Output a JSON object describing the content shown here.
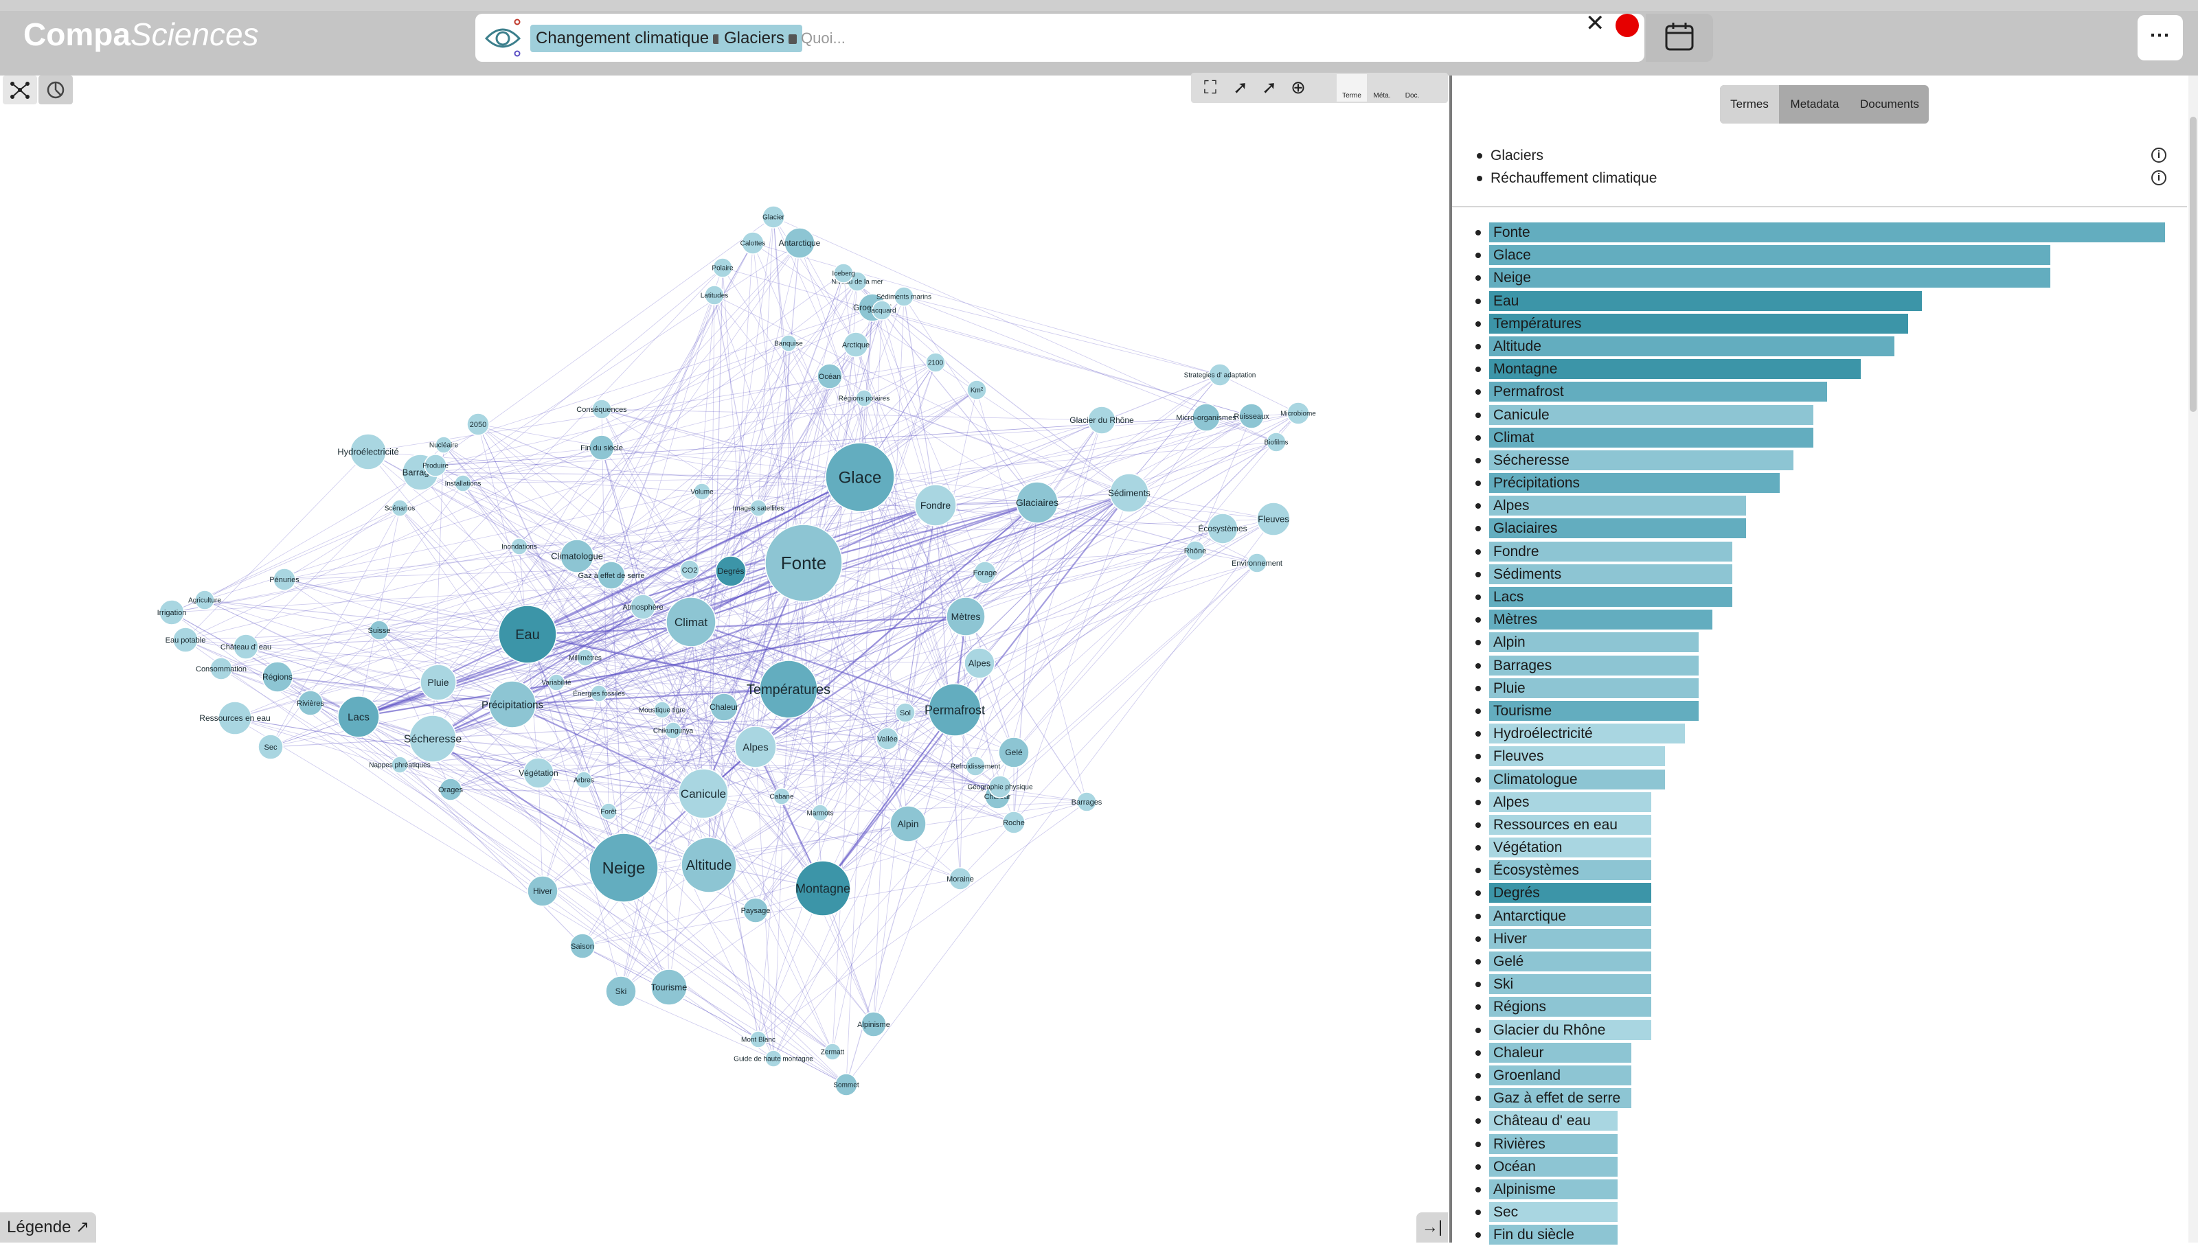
{
  "app": {
    "brand_strong": "Compa",
    "brand_light": "Sciences"
  },
  "search": {
    "chips": [
      "Changement climatique",
      "Glaciers"
    ],
    "placeholder": "Quoi...",
    "clear_icon": "close-icon",
    "status_color": "#e60000"
  },
  "left_toolbar": {
    "icons": [
      "graph-icon",
      "pie-chart-icon"
    ]
  },
  "graph_toolbar": {
    "items": [
      "fit-screen-icon",
      "select-nodes-icon",
      "pointer-icon",
      "zoom-in-icon",
      "zoom-out-icon"
    ],
    "modes": [
      "Terme",
      "Méta.",
      "Doc."
    ],
    "active_mode": "Terme"
  },
  "footer": {
    "legend": "Légende",
    "collapse_icon": "collapse-right-icon"
  },
  "right": {
    "tabs": [
      "Termes",
      "Metadata",
      "Documents"
    ],
    "active_tab": "Termes",
    "queries": [
      "Glaciers",
      "Réchauffement climatique"
    ]
  },
  "colors": {
    "node": "#9fcfdb",
    "node_dark": "#3c95a8",
    "edge": "#5b4fc4"
  },
  "chart_data": {
    "type": "bar",
    "orientation": "horizontal",
    "categories": [
      "Fonte",
      "Glace",
      "Neige",
      "Eau",
      "Températures",
      "Altitude",
      "Montagne",
      "Permafrost",
      "Canicule",
      "Climat",
      "Sécheresse",
      "Précipitations",
      "Alpes",
      "Glaciaires",
      "Fondre",
      "Sédiments",
      "Lacs",
      "Mètres",
      "Alpin",
      "Barrages",
      "Pluie",
      "Tourisme",
      "Hydroélectricité",
      "Fleuves",
      "Climatologue",
      "Alpes",
      "Ressources en eau",
      "Végétation",
      "Écosystèmes",
      "Degrés",
      "Antarctique",
      "Hiver",
      "Gelé",
      "Ski",
      "Régions",
      "Glacier du Rhône",
      "Chaleur",
      "Groenland",
      "Gaz à effet de serre",
      "Château d' eau",
      "Rivières",
      "Océan",
      "Alpinisme",
      "Sec",
      "Fin du siècle"
    ],
    "values": [
      100,
      83,
      83,
      64,
      62,
      60,
      55,
      50,
      48,
      48,
      45,
      43,
      38,
      38,
      36,
      36,
      36,
      33,
      31,
      31,
      31,
      31,
      29,
      26,
      26,
      24,
      24,
      24,
      24,
      24,
      24,
      24,
      24,
      24,
      24,
      24,
      21,
      21,
      21,
      19,
      19,
      19,
      19,
      19,
      19
    ],
    "shades": [
      2,
      2,
      2,
      3,
      3,
      2,
      3,
      2,
      1,
      2,
      1,
      2,
      1,
      2,
      1,
      1,
      2,
      2,
      1,
      1,
      1,
      2,
      0,
      0,
      1,
      0,
      0,
      0,
      1,
      3,
      1,
      1,
      1,
      1,
      1,
      0,
      1,
      1,
      1,
      0,
      1,
      1,
      1,
      0,
      1
    ],
    "xlim": [
      0,
      100
    ]
  },
  "graph": {
    "nodes": [
      {
        "label": "Fonte",
        "r": 56,
        "shade": 1,
        "fs": 26
      },
      {
        "label": "Glace",
        "r": 50,
        "shade": 2,
        "fs": 24
      },
      {
        "label": "Neige",
        "r": 50,
        "shade": 2,
        "fs": 24
      },
      {
        "label": "Eau",
        "r": 42,
        "shade": 3,
        "fs": 20
      },
      {
        "label": "Températures",
        "r": 42,
        "shade": 2,
        "fs": 20
      },
      {
        "label": "Altitude",
        "r": 40,
        "shade": 1,
        "fs": 20
      },
      {
        "label": "Montagne",
        "r": 40,
        "shade": 3,
        "fs": 18
      },
      {
        "label": "Permafrost",
        "r": 38,
        "shade": 2,
        "fs": 18
      },
      {
        "label": "Canicule",
        "r": 36,
        "shade": 0,
        "fs": 17
      },
      {
        "label": "Climat",
        "r": 36,
        "shade": 1,
        "fs": 17
      },
      {
        "label": "Sécheresse",
        "r": 34,
        "shade": 0,
        "fs": 16
      },
      {
        "label": "Précipitations",
        "r": 34,
        "shade": 1,
        "fs": 15
      },
      {
        "label": "Alpes",
        "r": 30,
        "shade": 0,
        "fs": 15
      },
      {
        "label": "Glaciaires",
        "r": 30,
        "shade": 1,
        "fs": 14
      },
      {
        "label": "Fondre",
        "r": 30,
        "shade": 0,
        "fs": 14
      },
      {
        "label": "Sédiments",
        "r": 28,
        "shade": 0,
        "fs": 13
      },
      {
        "label": "Lacs",
        "r": 30,
        "shade": 2,
        "fs": 15
      },
      {
        "label": "Mètres",
        "r": 28,
        "shade": 1,
        "fs": 14
      },
      {
        "label": "Alpin",
        "r": 26,
        "shade": 1,
        "fs": 14
      },
      {
        "label": "Barrages",
        "r": 26,
        "shade": 0,
        "fs": 13
      },
      {
        "label": "Pluie",
        "r": 26,
        "shade": 0,
        "fs": 14
      },
      {
        "label": "Tourisme",
        "r": 26,
        "shade": 1,
        "fs": 13
      },
      {
        "label": "Hydroélectricité",
        "r": 26,
        "shade": 0,
        "fs": 13
      },
      {
        "label": "Fleuves",
        "r": 24,
        "shade": 0,
        "fs": 13
      },
      {
        "label": "Climatologue",
        "r": 24,
        "shade": 1,
        "fs": 13
      },
      {
        "label": "Alpes",
        "r": 22,
        "shade": 0,
        "fs": 13
      },
      {
        "label": "Ressources en eau",
        "r": 24,
        "shade": 0,
        "fs": 12
      },
      {
        "label": "Végétation",
        "r": 22,
        "shade": 0,
        "fs": 12
      },
      {
        "label": "Écosystèmes",
        "r": 22,
        "shade": 0,
        "fs": 12
      },
      {
        "label": "Degrés",
        "r": 22,
        "shade": 3,
        "fs": 12
      },
      {
        "label": "Antarctique",
        "r": 22,
        "shade": 1,
        "fs": 12
      },
      {
        "label": "Hiver",
        "r": 22,
        "shade": 1,
        "fs": 12
      },
      {
        "label": "Gelé",
        "r": 22,
        "shade": 1,
        "fs": 12
      },
      {
        "label": "Ski",
        "r": 22,
        "shade": 1,
        "fs": 12
      },
      {
        "label": "Régions",
        "r": 22,
        "shade": 1,
        "fs": 12
      },
      {
        "label": "Glacier du Rhône",
        "r": 20,
        "shade": 0,
        "fs": 12
      },
      {
        "label": "Chaleur",
        "r": 20,
        "shade": 1,
        "fs": 12
      },
      {
        "label": "Groenland",
        "r": 20,
        "shade": 1,
        "fs": 12
      },
      {
        "label": "Gaz à effet de serre",
        "r": 20,
        "shade": 1,
        "fs": 11
      },
      {
        "label": "Château d' eau",
        "r": 18,
        "shade": 0,
        "fs": 11
      },
      {
        "label": "Rivières",
        "r": 18,
        "shade": 1,
        "fs": 11
      },
      {
        "label": "Océan",
        "r": 18,
        "shade": 1,
        "fs": 11
      },
      {
        "label": "Alpinisme",
        "r": 18,
        "shade": 1,
        "fs": 11
      },
      {
        "label": "Sec",
        "r": 18,
        "shade": 0,
        "fs": 11
      },
      {
        "label": "Fin du siècle",
        "r": 18,
        "shade": 1,
        "fs": 11
      },
      {
        "label": "Arctique",
        "r": 18,
        "shade": 0,
        "fs": 11
      },
      {
        "label": "Forage",
        "r": 16,
        "shade": 0,
        "fs": 11
      },
      {
        "label": "Atmosphère",
        "r": 18,
        "shade": 0,
        "fs": 11
      },
      {
        "label": "Vallée",
        "r": 16,
        "shade": 0,
        "fs": 11
      },
      {
        "label": "Roche",
        "r": 16,
        "shade": 0,
        "fs": 11
      },
      {
        "label": "Moraine",
        "r": 16,
        "shade": 0,
        "fs": 11
      },
      {
        "label": "Paysage",
        "r": 18,
        "shade": 1,
        "fs": 11
      },
      {
        "label": "Saison",
        "r": 18,
        "shade": 1,
        "fs": 11
      },
      {
        "label": "Barrages",
        "r": 14,
        "shade": 0,
        "fs": 11
      },
      {
        "label": "2050",
        "r": 16,
        "shade": 0,
        "fs": 11
      },
      {
        "label": "Conséquences",
        "r": 14,
        "shade": 0,
        "fs": 11
      },
      {
        "label": "Irrigation",
        "r": 18,
        "shade": 0,
        "fs": 11
      },
      {
        "label": "Agriculture",
        "r": 14,
        "shade": 0,
        "fs": 10
      },
      {
        "label": "Pénuries",
        "r": 16,
        "shade": 0,
        "fs": 11
      },
      {
        "label": "Eau potable",
        "r": 18,
        "shade": 0,
        "fs": 11
      },
      {
        "label": "Consommation",
        "r": 16,
        "shade": 0,
        "fs": 11
      },
      {
        "label": "Nappes phréatiques",
        "r": 12,
        "shade": 0,
        "fs": 10
      },
      {
        "label": "Orages",
        "r": 16,
        "shade": 1,
        "fs": 11
      },
      {
        "label": "Chaleur",
        "r": 18,
        "shade": 1,
        "fs": 11
      },
      {
        "label": "CO2",
        "r": 14,
        "shade": 0,
        "fs": 11
      },
      {
        "label": "Suisse",
        "r": 14,
        "shade": 1,
        "fs": 11
      },
      {
        "label": "Rhône",
        "r": 14,
        "shade": 0,
        "fs": 11
      },
      {
        "label": "Environnement",
        "r": 14,
        "shade": 0,
        "fs": 11
      },
      {
        "label": "Sol",
        "r": 14,
        "shade": 0,
        "fs": 11
      },
      {
        "label": "Ruisseaux",
        "r": 18,
        "shade": 1,
        "fs": 11
      },
      {
        "label": "Micro-organismes",
        "r": 20,
        "shade": 1,
        "fs": 11
      },
      {
        "label": "Biofilms",
        "r": 14,
        "shade": 0,
        "fs": 10
      },
      {
        "label": "2100",
        "r": 14,
        "shade": 0,
        "fs": 10
      },
      {
        "label": "Km²",
        "r": 14,
        "shade": 0,
        "fs": 10
      },
      {
        "label": "Banquise",
        "r": 12,
        "shade": 0,
        "fs": 10
      },
      {
        "label": "Calottes",
        "r": 16,
        "shade": 0,
        "fs": 10
      },
      {
        "label": "Latitudes",
        "r": 14,
        "shade": 0,
        "fs": 10
      },
      {
        "label": "Polaire",
        "r": 14,
        "shade": 0,
        "fs": 10
      },
      {
        "label": "Glacier",
        "r": 16,
        "shade": 0,
        "fs": 10
      },
      {
        "label": "Sommet",
        "r": 16,
        "shade": 1,
        "fs": 10
      },
      {
        "label": "Guide de haute montagne",
        "r": 12,
        "shade": 0,
        "fs": 10
      },
      {
        "label": "Mont Blanc",
        "r": 12,
        "shade": 0,
        "fs": 10
      },
      {
        "label": "Zermatt",
        "r": 12,
        "shade": 0,
        "fs": 10
      },
      {
        "label": "Géographie physique",
        "r": 16,
        "shade": 0,
        "fs": 10
      },
      {
        "label": "Refroidissement",
        "r": 14,
        "shade": 0,
        "fs": 10
      },
      {
        "label": "Cabane",
        "r": 12,
        "shade": 0,
        "fs": 10
      },
      {
        "label": "Marmots",
        "r": 12,
        "shade": 0,
        "fs": 10
      },
      {
        "label": "Forêt",
        "r": 12,
        "shade": 0,
        "fs": 10
      },
      {
        "label": "Arbres",
        "r": 12,
        "shade": 0,
        "fs": 10
      },
      {
        "label": "Chikungunya",
        "r": 12,
        "shade": 0,
        "fs": 10
      },
      {
        "label": "Moustique tigre",
        "r": 12,
        "shade": 0,
        "fs": 10
      },
      {
        "label": "Énergies fossiles",
        "r": 12,
        "shade": 0,
        "fs": 10
      },
      {
        "label": "Variabilité",
        "r": 12,
        "shade": 0,
        "fs": 10
      },
      {
        "label": "Millimètres",
        "r": 12,
        "shade": 0,
        "fs": 10
      },
      {
        "label": "Inondations",
        "r": 12,
        "shade": 0,
        "fs": 10
      },
      {
        "label": "Scénarios",
        "r": 12,
        "shade": 0,
        "fs": 10
      },
      {
        "label": "Nucléaire",
        "r": 12,
        "shade": 0,
        "fs": 10
      },
      {
        "label": "Produire",
        "r": 16,
        "shade": 0,
        "fs": 10
      },
      {
        "label": "Installations",
        "r": 12,
        "shade": 0,
        "fs": 10
      },
      {
        "label": "Volume",
        "r": 12,
        "shade": 0,
        "fs": 10
      },
      {
        "label": "Images satellites",
        "r": 12,
        "shade": 0,
        "fs": 10
      },
      {
        "label": "Régions polaires",
        "r": 12,
        "shade": 0,
        "fs": 10
      },
      {
        "label": "Jacquard",
        "r": 14,
        "shade": 0,
        "fs": 10
      },
      {
        "label": "Niveau de la mer",
        "r": 14,
        "shade": 0,
        "fs": 10
      },
      {
        "label": "Sédiments marins",
        "r": 14,
        "shade": 0,
        "fs": 10
      },
      {
        "label": "Iceberg",
        "r": 14,
        "shade": 0,
        "fs": 10
      },
      {
        "label": "Strategies d' adaptation",
        "r": 16,
        "shade": 0,
        "fs": 10
      },
      {
        "label": "Microbiome",
        "r": 16,
        "shade": 0,
        "fs": 10
      }
    ]
  }
}
